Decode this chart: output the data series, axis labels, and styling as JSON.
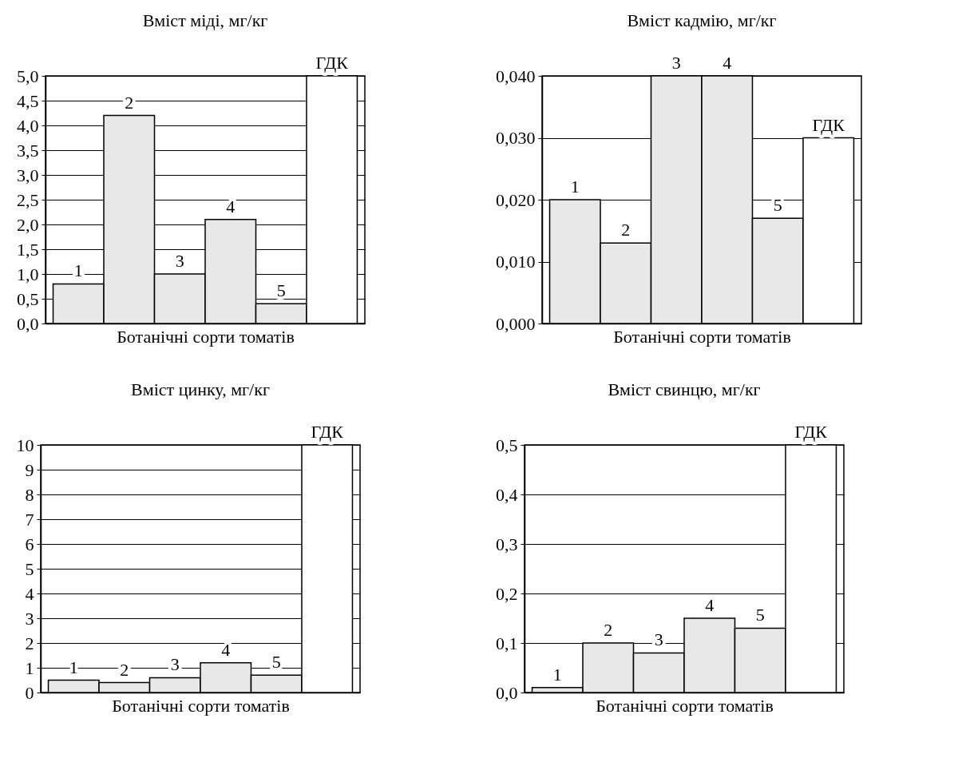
{
  "chart_data": [
    {
      "type": "bar",
      "title": "Вміст міді, мг/кг",
      "xlabel": "Ботанічні сорти томатів",
      "categories": [
        "1",
        "2",
        "3",
        "4",
        "5",
        "ГДК"
      ],
      "values": [
        0.8,
        4.2,
        1.0,
        2.1,
        0.4,
        5.0
      ],
      "colors": [
        "#e8e8e8",
        "#e8e8e8",
        "#e8e8e8",
        "#e8e8e8",
        "#e8e8e8",
        "#ffffff"
      ],
      "ylim": [
        0,
        5
      ],
      "yticks": [
        {
          "value": 0,
          "label": "0,0"
        },
        {
          "value": 0.5,
          "label": "0,5"
        },
        {
          "value": 1,
          "label": "1,0"
        },
        {
          "value": 1.5,
          "label": "1,5"
        },
        {
          "value": 2,
          "label": "2,0"
        },
        {
          "value": 2.5,
          "label": "2,5"
        },
        {
          "value": 3,
          "label": "3,0"
        },
        {
          "value": 3.5,
          "label": "3,5"
        },
        {
          "value": 4,
          "label": "4,0"
        },
        {
          "value": 4.5,
          "label": "4,5"
        },
        {
          "value": 5,
          "label": "5,0"
        }
      ],
      "grid": "y"
    },
    {
      "type": "bar",
      "title": "Вміст кадмію, мг/кг",
      "xlabel": "Ботанічні сорти томатів",
      "categories": [
        "1",
        "2",
        "3",
        "4",
        "5",
        "ГДК"
      ],
      "values": [
        0.02,
        0.013,
        0.04,
        0.04,
        0.017,
        0.03
      ],
      "colors": [
        "#e8e8e8",
        "#e8e8e8",
        "#e8e8e8",
        "#e8e8e8",
        "#e8e8e8",
        "#ffffff"
      ],
      "ylim": [
        0,
        0.04
      ],
      "yticks": [
        {
          "value": 0,
          "label": "0,000"
        },
        {
          "value": 0.01,
          "label": "0,010"
        },
        {
          "value": 0.02,
          "label": "0,020"
        },
        {
          "value": 0.03,
          "label": "0,030"
        },
        {
          "value": 0.04,
          "label": "0,040"
        }
      ],
      "grid": "y"
    },
    {
      "type": "bar",
      "title": "Вміст цинку, мг/кг",
      "xlabel": "Ботанічні сорти томатів",
      "categories": [
        "1",
        "2",
        "3",
        "4",
        "5",
        "ГДК"
      ],
      "values": [
        0.5,
        0.4,
        0.6,
        1.2,
        0.7,
        10
      ],
      "colors": [
        "#e8e8e8",
        "#e8e8e8",
        "#e8e8e8",
        "#e8e8e8",
        "#e8e8e8",
        "#ffffff"
      ],
      "ylim": [
        0,
        10
      ],
      "yticks": [
        0,
        1,
        2,
        3,
        4,
        5,
        6,
        7,
        8,
        9,
        10
      ],
      "grid": "y"
    },
    {
      "type": "bar",
      "title": "Вміст свинцю, мг/кг",
      "xlabel": "Ботанічні сорти томатів",
      "categories": [
        "1",
        "2",
        "3",
        "4",
        "5",
        "ГДК"
      ],
      "values": [
        0.01,
        0.1,
        0.08,
        0.15,
        0.13,
        0.5
      ],
      "colors": [
        "#e8e8e8",
        "#e8e8e8",
        "#e8e8e8",
        "#e8e8e8",
        "#e8e8e8",
        "#ffffff"
      ],
      "ylim": [
        0,
        0.5
      ],
      "yticks": [
        {
          "value": 0,
          "label": "0,0"
        },
        {
          "value": 0.1,
          "label": "0,1"
        },
        {
          "value": 0.2,
          "label": "0,2"
        },
        {
          "value": 0.3,
          "label": "0,3"
        },
        {
          "value": 0.4,
          "label": "0,4"
        },
        {
          "value": 0.5,
          "label": "0,5"
        }
      ],
      "grid": "y"
    }
  ]
}
